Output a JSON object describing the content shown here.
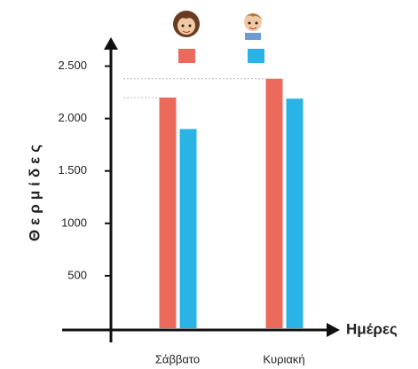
{
  "chart_data": {
    "type": "bar",
    "y_label": "Θερμίδες",
    "x_label": "Ημέρες",
    "categories": [
      "Σάββατο",
      "Κυριακή"
    ],
    "series": [
      {
        "color": "#ec6a5c",
        "values": [
          2200,
          2380
        ]
      },
      {
        "color": "#29b3e6",
        "values": [
          1900,
          2190
        ]
      }
    ],
    "ylim": [
      0,
      2750
    ],
    "yticks": [
      500,
      1000,
      {
        "value": 1500,
        "label": "1.500"
      },
      {
        "value": 2000,
        "label": "2.000"
      },
      {
        "value": 2500,
        "label": "2.500"
      }
    ]
  }
}
